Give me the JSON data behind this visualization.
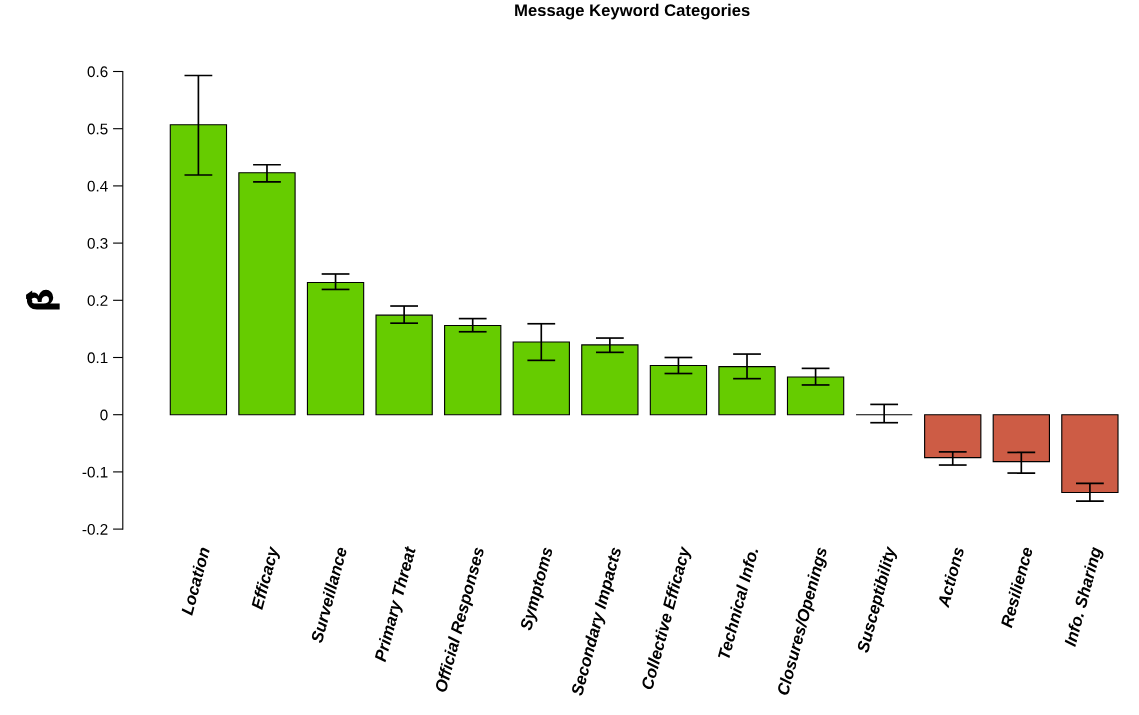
{
  "chart_data": {
    "type": "bar",
    "title": "Message Keyword Categories",
    "ylabel": "β̂",
    "categories": [
      "Location",
      "Efficacy",
      "Surveillance",
      "Primary Threat",
      "Official Responses",
      "Symptoms",
      "Secondary Impacts",
      "Collective Efficacy",
      "Technical Info.",
      "Closures/Openings",
      "Susceptibility",
      "Actions",
      "Resilience",
      "Info. Sharing"
    ],
    "values": [
      0.507,
      0.423,
      0.231,
      0.174,
      0.156,
      0.127,
      0.122,
      0.086,
      0.084,
      0.066,
      0.0,
      -0.075,
      -0.082,
      -0.136
    ],
    "colors": [
      "#66cc00",
      "#66cc00",
      "#66cc00",
      "#66cc00",
      "#66cc00",
      "#66cc00",
      "#66cc00",
      "#66cc00",
      "#66cc00",
      "#66cc00",
      "#000000",
      "#cd5c45",
      "#cd5c45",
      "#cd5c45"
    ],
    "errors": [
      [
        0.419,
        0.593
      ],
      [
        0.407,
        0.437
      ],
      [
        0.219,
        0.246
      ],
      [
        0.16,
        0.19
      ],
      [
        0.145,
        0.168
      ],
      [
        0.095,
        0.159
      ],
      [
        0.109,
        0.134
      ],
      [
        0.072,
        0.1
      ],
      [
        0.063,
        0.106
      ],
      [
        0.052,
        0.081
      ],
      [
        -0.014,
        0.018
      ],
      [
        -0.088,
        -0.065
      ],
      [
        -0.102,
        -0.066
      ],
      [
        -0.151,
        -0.12
      ]
    ],
    "ylim": [
      -0.2,
      0.6
    ],
    "yticks": [
      -0.2,
      -0.1,
      0,
      0.1,
      0.2,
      0.3,
      0.4,
      0.5,
      0.6
    ],
    "grid": false,
    "legend": false
  }
}
